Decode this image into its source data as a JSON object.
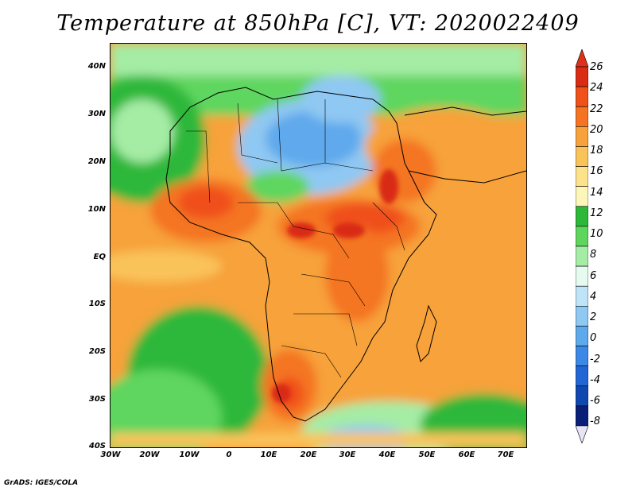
{
  "title": "Temperature at 850hPa [C], VT: 2020022409",
  "credit": "GrADS: IGES/COLA",
  "lat_labels": [
    "40N",
    "30N",
    "20N",
    "10N",
    "EQ",
    "10S",
    "20S",
    "30S",
    "40S"
  ],
  "lon_labels": [
    "30W",
    "20W",
    "10W",
    "0",
    "10E",
    "20E",
    "30E",
    "40E",
    "50E",
    "60E",
    "70E"
  ],
  "colorbar": {
    "levels": [
      "26",
      "24",
      "22",
      "20",
      "18",
      "16",
      "14",
      "12",
      "10",
      "8",
      "6",
      "4",
      "2",
      "0",
      "-2",
      "-4",
      "-6",
      "-8"
    ],
    "colors": [
      "#d92c12",
      "#f0501a",
      "#f47421",
      "#f7a23a",
      "#fac35a",
      "#fde28c",
      "#fcf6b8",
      "#2db83a",
      "#5ed65e",
      "#a5eca5",
      "#e6fbf0",
      "#bfe3f7",
      "#8fc8f2",
      "#5ea9ec",
      "#3c88e6",
      "#2166d4",
      "#1048b0",
      "#0a1f78"
    ],
    "top_color": "#e0301a",
    "bottom_color": "#e8e4f7"
  }
}
